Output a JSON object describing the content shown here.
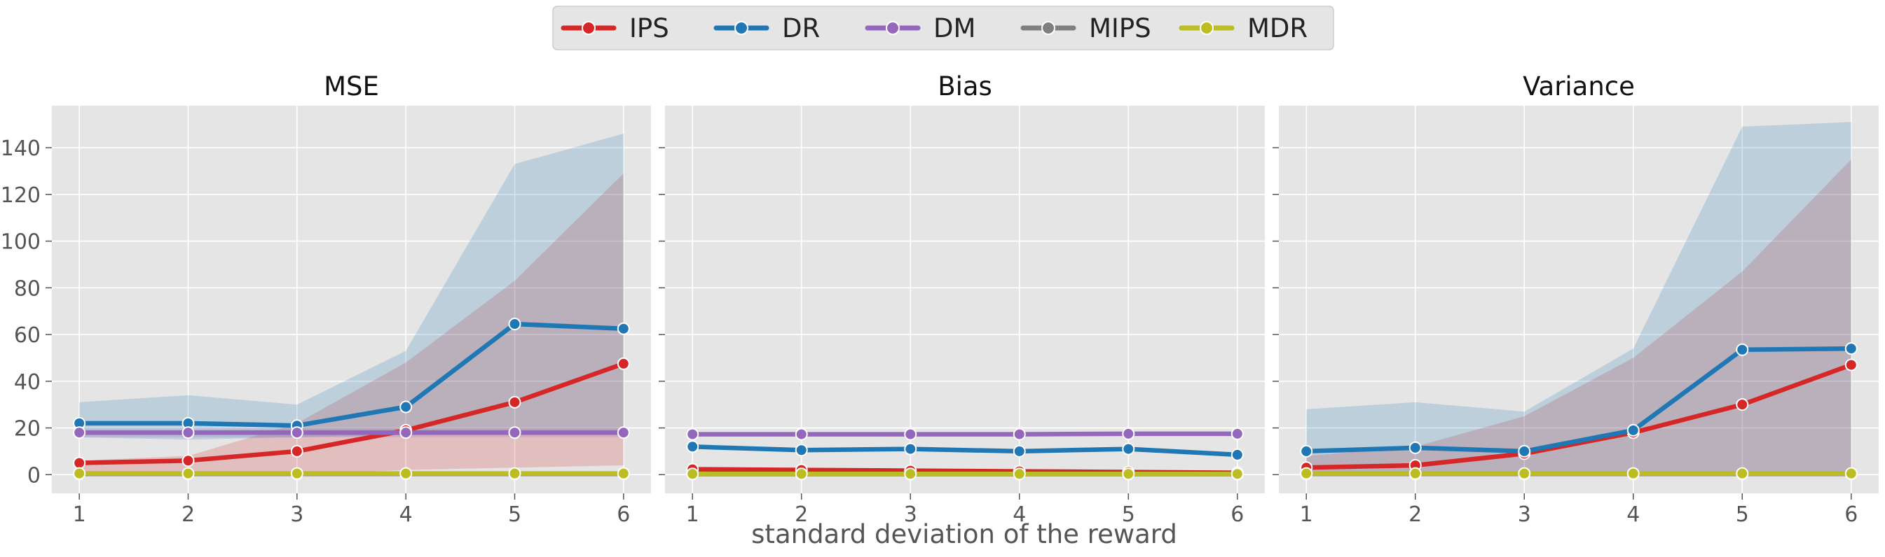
{
  "legend": {
    "items": [
      {
        "name": "IPS",
        "color": "#d62728"
      },
      {
        "name": "DR",
        "color": "#1f77b4"
      },
      {
        "name": "DM",
        "color": "#9467bd"
      },
      {
        "name": "MIPS",
        "color": "#7f7f7f"
      },
      {
        "name": "MDR",
        "color": "#bcbd22"
      }
    ]
  },
  "xlabel": "standard deviation of the reward",
  "chart_data": [
    {
      "type": "line",
      "title": "MSE",
      "x": [
        1,
        2,
        3,
        4,
        5,
        6
      ],
      "xticks": [
        "1",
        "2",
        "3",
        "4",
        "5",
        "6"
      ],
      "ylim": [
        -8,
        158
      ],
      "yticks": [
        0,
        20,
        40,
        60,
        80,
        100,
        120,
        140
      ],
      "grid": true,
      "series": [
        {
          "name": "IPS",
          "color": "#d62728",
          "values": [
            5,
            6,
            10,
            19,
            31,
            47.5
          ],
          "band_lower": [
            0,
            0,
            0,
            2,
            3,
            4
          ],
          "band_upper": [
            6,
            8,
            22,
            48,
            83,
            129
          ]
        },
        {
          "name": "DR",
          "color": "#1f77b4",
          "values": [
            22,
            22,
            21,
            29,
            64.5,
            62.5
          ],
          "band_lower": [
            16,
            15,
            16,
            17,
            17,
            17
          ],
          "band_upper": [
            31,
            34,
            30,
            53,
            133,
            146
          ]
        },
        {
          "name": "DM",
          "color": "#9467bd",
          "values": [
            18,
            18,
            18,
            18,
            18,
            18
          ],
          "band_lower": [
            16,
            16,
            16,
            16,
            16,
            16
          ],
          "band_upper": [
            20,
            20,
            20,
            20,
            20,
            20
          ]
        },
        {
          "name": "MIPS",
          "color": "#7f7f7f",
          "values": [
            0.3,
            0.3,
            0.3,
            0.3,
            0.3,
            0.3
          ]
        },
        {
          "name": "MDR",
          "color": "#bcbd22",
          "values": [
            0.5,
            0.5,
            0.5,
            0.5,
            0.5,
            0.5
          ]
        }
      ]
    },
    {
      "type": "line",
      "title": "Bias",
      "x": [
        1,
        2,
        3,
        4,
        5,
        6
      ],
      "xticks": [
        "1",
        "2",
        "3",
        "4",
        "5",
        "6"
      ],
      "ylim": [
        -8,
        158
      ],
      "yticks": [
        0,
        20,
        40,
        60,
        80,
        100,
        120,
        140
      ],
      "grid": true,
      "series": [
        {
          "name": "IPS",
          "color": "#d62728",
          "values": [
            2.3,
            2,
            1.7,
            1.4,
            1.1,
            0.8
          ]
        },
        {
          "name": "DR",
          "color": "#1f77b4",
          "values": [
            12,
            10.5,
            11,
            10,
            11,
            8.5
          ]
        },
        {
          "name": "DM",
          "color": "#9467bd",
          "values": [
            17.3,
            17.3,
            17.3,
            17.3,
            17.5,
            17.5
          ]
        },
        {
          "name": "MIPS",
          "color": "#7f7f7f",
          "values": [
            0.2,
            0.2,
            0.2,
            0.2,
            0.2,
            0.2
          ]
        },
        {
          "name": "MDR",
          "color": "#bcbd22",
          "values": [
            0.3,
            0.3,
            0.3,
            0.3,
            0.3,
            0.3
          ]
        }
      ]
    },
    {
      "type": "line",
      "title": "Variance",
      "x": [
        1,
        2,
        3,
        4,
        5,
        6
      ],
      "xticks": [
        "1",
        "2",
        "3",
        "4",
        "5",
        "6"
      ],
      "ylim": [
        -8,
        158
      ],
      "yticks": [
        0,
        20,
        40,
        60,
        80,
        100,
        120,
        140
      ],
      "grid": true,
      "series": [
        {
          "name": "IPS",
          "color": "#d62728",
          "values": [
            3,
            4,
            9,
            18,
            30,
            47
          ],
          "band_lower": [
            0,
            0,
            0,
            0,
            0,
            0
          ],
          "band_upper": [
            8,
            12,
            25,
            50,
            87,
            135
          ]
        },
        {
          "name": "DR",
          "color": "#1f77b4",
          "values": [
            10,
            11.5,
            10,
            19,
            53.5,
            54
          ],
          "band_lower": [
            0,
            0,
            0,
            0,
            0,
            0
          ],
          "band_upper": [
            28,
            31,
            27,
            54,
            149,
            151
          ]
        },
        {
          "name": "DM",
          "color": "#9467bd",
          "values": [
            0.3,
            0.3,
            0.3,
            0.3,
            0.3,
            0.3
          ]
        },
        {
          "name": "MIPS",
          "color": "#7f7f7f",
          "values": [
            0.3,
            0.3,
            0.3,
            0.3,
            0.3,
            0.3
          ]
        },
        {
          "name": "MDR",
          "color": "#bcbd22",
          "values": [
            0.5,
            0.5,
            0.5,
            0.5,
            0.5,
            0.5
          ]
        }
      ]
    }
  ]
}
